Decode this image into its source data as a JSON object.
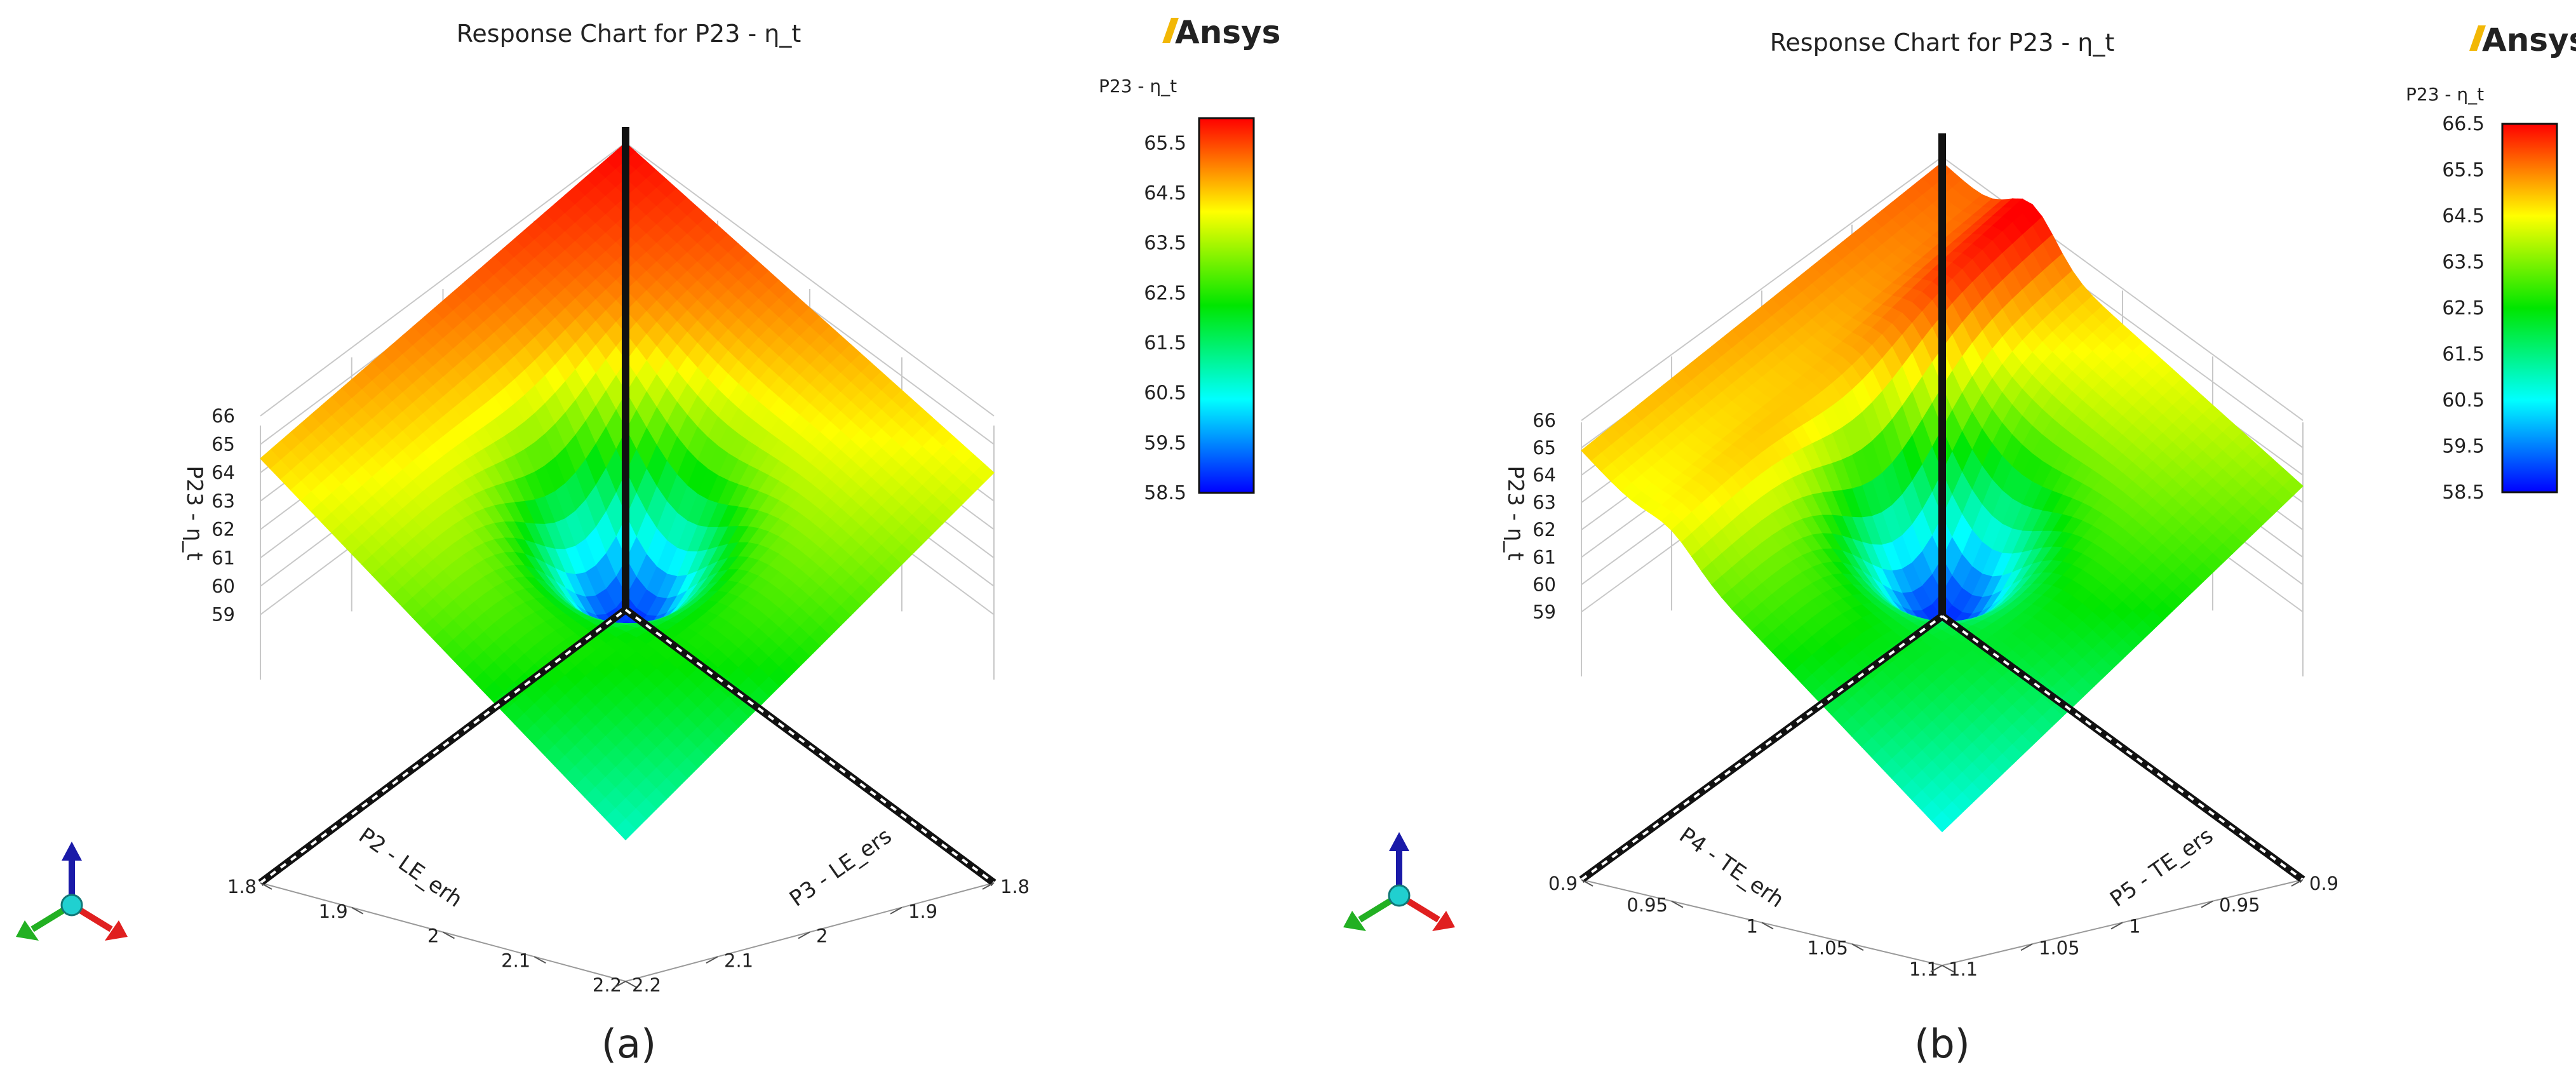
{
  "colors": {
    "colormap": [
      "#0000ff",
      "#00ffff",
      "#00e600",
      "#ffff00",
      "#ff0000"
    ],
    "axis_line": "#111111",
    "grid": "#c8c8c8",
    "logo_accent": "#f2b705",
    "triad_x": "#e02020",
    "triad_y": "#22b022",
    "triad_z": "#1a1aa8",
    "triad_center": "#20d0d0"
  },
  "chart_data": [
    {
      "id": "a",
      "type": "surface3d",
      "caption": "(a)",
      "logo": "Ansys",
      "title": "Response Chart for P23 - η_t",
      "colorbar": {
        "title": "P23 - η_t",
        "min": 58.5,
        "max": 66.0,
        "ticks": [
          "65.5",
          "64.5",
          "63.5",
          "62.5",
          "61.5",
          "60.5",
          "59.5",
          "58.5"
        ]
      },
      "x": {
        "label": "P2 - LE_erh",
        "ticks": [
          "1.8",
          "1.9",
          "2",
          "2.1",
          "2.2"
        ],
        "range": [
          1.8,
          2.2
        ]
      },
      "y": {
        "label": "P3 - LE_ers",
        "ticks": [
          "1.8",
          "1.9",
          "2",
          "2.1",
          "2.2"
        ],
        "range": [
          1.8,
          2.2
        ]
      },
      "z": {
        "label": "P23 - η_t",
        "ticks": [
          "66",
          "65",
          "64",
          "63",
          "62",
          "61",
          "60",
          "59"
        ],
        "range": [
          58.5,
          66.2
        ]
      },
      "surface": {
        "corners": {
          "x_min_y_min": 66.0,
          "x_max_y_min": 64.0,
          "x_min_y_max": 64.5,
          "x_max_y_max": 60.8
        },
        "dip": {
          "x": 2.0,
          "y": 2.0,
          "z_min": 58.8
        }
      }
    },
    {
      "id": "b",
      "type": "surface3d",
      "caption": "(b)",
      "logo": "Ansys",
      "title": "Response Chart for P23 - η_t",
      "colorbar": {
        "title": "P23 - η_t",
        "min": 58.5,
        "max": 66.5,
        "ticks": [
          "66.5",
          "65.5",
          "64.5",
          "63.5",
          "62.5",
          "61.5",
          "60.5",
          "59.5",
          "58.5"
        ]
      },
      "x": {
        "label": "P4 - TE_erh",
        "ticks": [
          "0.9",
          "0.95",
          "1",
          "1.05",
          "1.1"
        ],
        "range": [
          0.9,
          1.1
        ]
      },
      "y": {
        "label": "P5 - TE_ers",
        "ticks": [
          "0.9",
          "0.95",
          "1",
          "1.05",
          "1.1"
        ],
        "range": [
          0.9,
          1.1
        ]
      },
      "z": {
        "label": "P23 - η_t",
        "ticks": [
          "66",
          "65",
          "64",
          "63",
          "62",
          "61",
          "60",
          "59"
        ],
        "range": [
          58.5,
          66.2
        ]
      },
      "surface": {
        "corners": {
          "x_min_y_min": 65.8,
          "x_max_y_min": 63.6,
          "x_min_y_max": 64.9,
          "x_max_y_max": 60.6
        },
        "dip": {
          "x": 1.0,
          "y": 1.0,
          "z_min": 58.8
        },
        "ridge": {
          "x": 0.95,
          "z_peak": 66.3
        }
      }
    }
  ]
}
